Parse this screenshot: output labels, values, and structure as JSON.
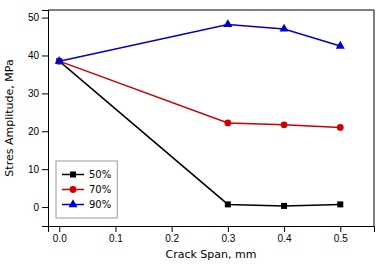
{
  "chart_data": {
    "type": "line",
    "xlabel": "Crack Span, mm",
    "ylabel": "Stres Amplitude, MPa",
    "x": [
      0.0,
      0.3,
      0.4,
      0.5
    ],
    "series": [
      {
        "name": "50%",
        "color": "#000000",
        "marker": "square",
        "values": [
          38.5,
          0.7,
          0.3,
          0.7
        ]
      },
      {
        "name": "70%",
        "color": "#cc0000",
        "marker": "circle",
        "values": [
          38.5,
          22.2,
          21.7,
          21.0
        ]
      },
      {
        "name": "90%",
        "color": "#0000cc",
        "marker": "triangle",
        "values": [
          38.5,
          48.2,
          47.0,
          42.5
        ]
      }
    ],
    "xlim": [
      -0.02,
      0.56
    ],
    "ylim": [
      -5,
      52
    ],
    "xticks": [
      {
        "value": 0.0,
        "label": "0.0"
      },
      0.1,
      0.2,
      0.3,
      0.4,
      0.5
    ],
    "yticks": [
      0,
      10,
      20,
      30,
      40,
      50
    ],
    "grid": false,
    "legend": "lower left"
  }
}
